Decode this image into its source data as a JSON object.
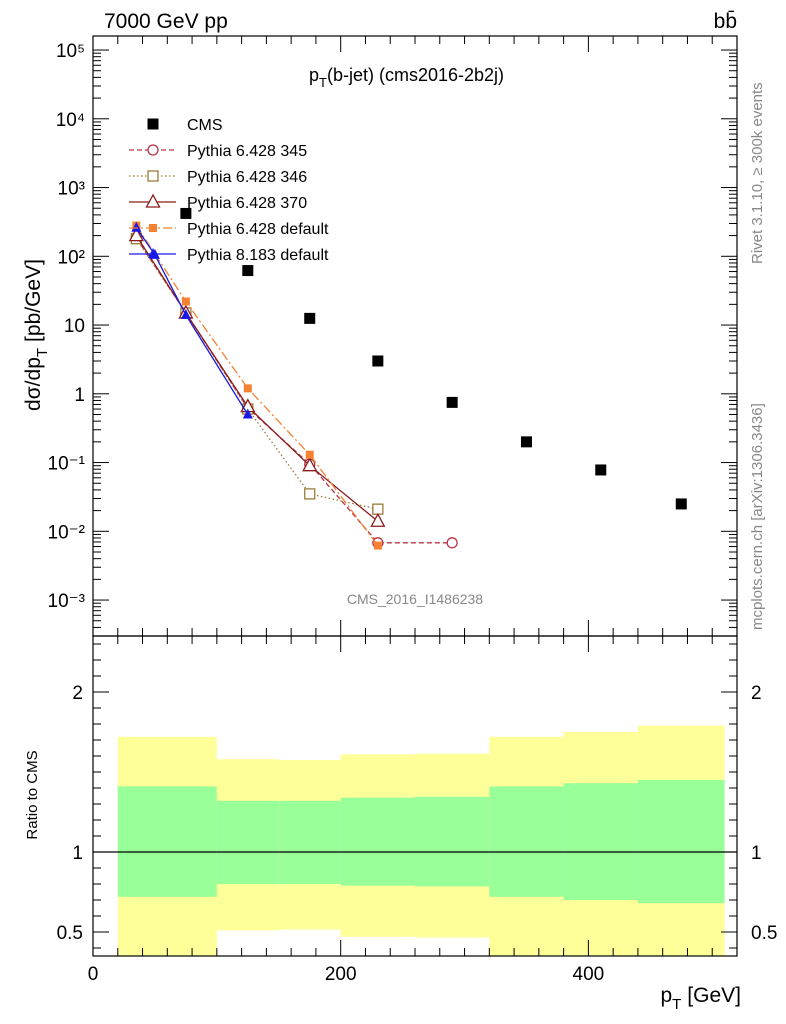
{
  "header": {
    "left": "7000 GeV pp",
    "right": "bb̄"
  },
  "main_panel": {
    "title": "(b-jet) (cms2016-2b2j)",
    "title_prefix": "p",
    "title_sub": "T",
    "ylabel": "dσ/dp",
    "ylabel_sub": "T",
    "ylabel_unit": "[pb/GeV]",
    "watermark": "CMS_2016_I1486238"
  },
  "side_text": {
    "rivet": "Rivet 3.1.10, ≥ 300k events",
    "mcplots": "mcplots.cern.ch [arXiv:1306.3436]"
  },
  "ratio_panel": {
    "ylabel": "Ratio to CMS"
  },
  "xaxis": {
    "label": "p",
    "label_sub": "T",
    "label_unit": "[GeV]"
  },
  "chart_data": [
    {
      "type": "scatter",
      "xlim": [
        0,
        520
      ],
      "ylim": [
        0.0003,
        160000
      ],
      "yscale": "log",
      "legend_position": "top-left",
      "yticks": [
        {
          "v": 0.001,
          "label": "10⁻³"
        },
        {
          "v": 0.01,
          "label": "10⁻²"
        },
        {
          "v": 0.1,
          "label": "10⁻¹"
        },
        {
          "v": 1,
          "label": "1"
        },
        {
          "v": 10,
          "label": "10"
        },
        {
          "v": 100,
          "label": "10²"
        },
        {
          "v": 1000,
          "label": "10³"
        },
        {
          "v": 10000,
          "label": "10⁴"
        },
        {
          "v": 100000,
          "label": "10⁵"
        }
      ],
      "series": [
        {
          "name": "CMS",
          "style": "data",
          "color": "#000000",
          "x": [
            75,
            125,
            175,
            230,
            290,
            350,
            410,
            475
          ],
          "y": [
            420,
            62,
            12.5,
            3.0,
            0.75,
            0.2,
            0.078,
            0.025
          ]
        },
        {
          "name": "Pythia 6.428 345",
          "style": "circle",
          "color": "#b83345",
          "dash": "5,3",
          "x": [
            35,
            75,
            125,
            175,
            230,
            290
          ],
          "y": [
            185,
            15,
            0.62,
            0.095,
            0.0068,
            0.0068
          ]
        },
        {
          "name": "Pythia 6.428 346",
          "style": "square-open",
          "color": "#9a7b3a",
          "dash": "1.5,2.5",
          "x": [
            35,
            75,
            125,
            175,
            230
          ],
          "y": [
            180,
            15,
            0.6,
            0.035,
            0.021
          ]
        },
        {
          "name": "Pythia 6.428 370",
          "style": "triangle-open",
          "color": "#8a1b1b",
          "dash": "",
          "x": [
            35,
            75,
            125,
            175,
            230
          ],
          "y": [
            200,
            15,
            0.65,
            0.09,
            0.014
          ]
        },
        {
          "name": "Pythia 6.428 default",
          "style": "square-filled",
          "color": "#f58232",
          "dash": "9,3,2,3",
          "x": [
            35,
            75,
            125,
            175,
            230
          ],
          "y": [
            280,
            22,
            1.2,
            0.13,
            0.0062
          ]
        },
        {
          "name": "Pythia 8.183 default",
          "style": "triangle-filled",
          "color": "#1a1ae6",
          "dash": "",
          "x": [
            35,
            50,
            75,
            125
          ],
          "y": [
            260,
            105,
            14,
            0.5
          ]
        }
      ]
    },
    {
      "type": "area",
      "xlim": [
        0,
        520
      ],
      "ylim": [
        0.35,
        2.35
      ],
      "yticks": [
        0.5,
        1,
        2
      ],
      "reference_line": 1,
      "bands": [
        {
          "x0": 20,
          "x1": 100,
          "yellow": [
            0.35,
            1.72
          ],
          "green": [
            0.72,
            1.41
          ]
        },
        {
          "x0": 100,
          "x1": 150,
          "yellow": [
            0.51,
            1.58
          ],
          "green": [
            0.8,
            1.32
          ]
        },
        {
          "x0": 150,
          "x1": 200,
          "yellow": [
            0.515,
            1.575
          ],
          "green": [
            0.8,
            1.32
          ]
        },
        {
          "x0": 200,
          "x1": 260,
          "yellow": [
            0.47,
            1.61
          ],
          "green": [
            0.79,
            1.34
          ]
        },
        {
          "x0": 260,
          "x1": 320,
          "yellow": [
            0.465,
            1.615
          ],
          "green": [
            0.785,
            1.345
          ]
        },
        {
          "x0": 320,
          "x1": 380,
          "yellow": [
            0.35,
            1.72
          ],
          "green": [
            0.72,
            1.41
          ]
        },
        {
          "x0": 380,
          "x1": 440,
          "yellow": [
            0.35,
            1.75
          ],
          "green": [
            0.7,
            1.43
          ]
        },
        {
          "x0": 440,
          "x1": 510,
          "yellow": [
            0.35,
            1.79
          ],
          "green": [
            0.68,
            1.45
          ]
        }
      ]
    }
  ]
}
